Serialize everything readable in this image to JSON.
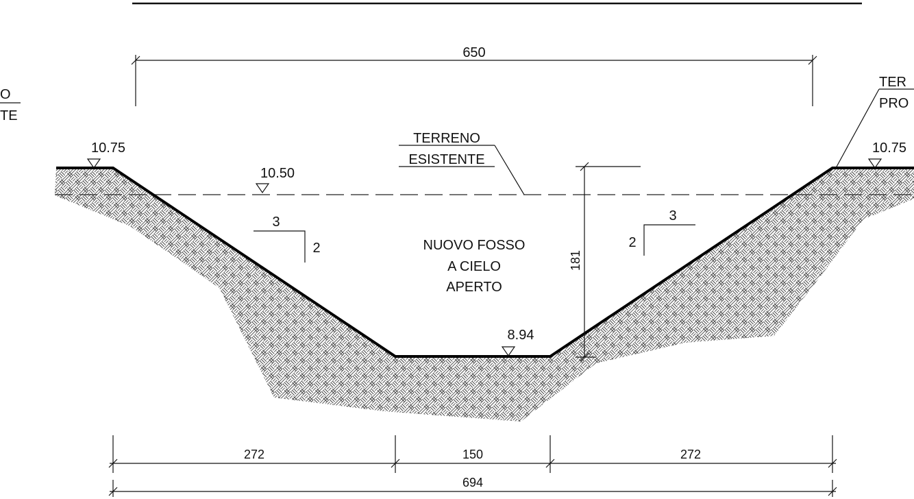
{
  "title_partial_left": {
    "line1": "O",
    "line2": "TE"
  },
  "title_partial_right": {
    "line1": "TER",
    "line2": "PRO"
  },
  "terrain_label": {
    "line1": "TERRENO",
    "line2": "ESISTENTE"
  },
  "channel_label": {
    "line1": "NUOVO FOSSO",
    "line2": "A CIELO",
    "line3": "APERTO"
  },
  "elevations": {
    "left_bank": "10.75",
    "water": "10.50",
    "bottom": "8.94",
    "right_bank": "10.75"
  },
  "slopes": {
    "left_run": "3",
    "left_rise": "2",
    "right_run": "3",
    "right_rise": "2"
  },
  "dimensions": {
    "top_width": "650",
    "depth": "181",
    "left_slope_width": "272",
    "bottom_width": "150",
    "right_slope_width": "272",
    "total_width": "694"
  }
}
